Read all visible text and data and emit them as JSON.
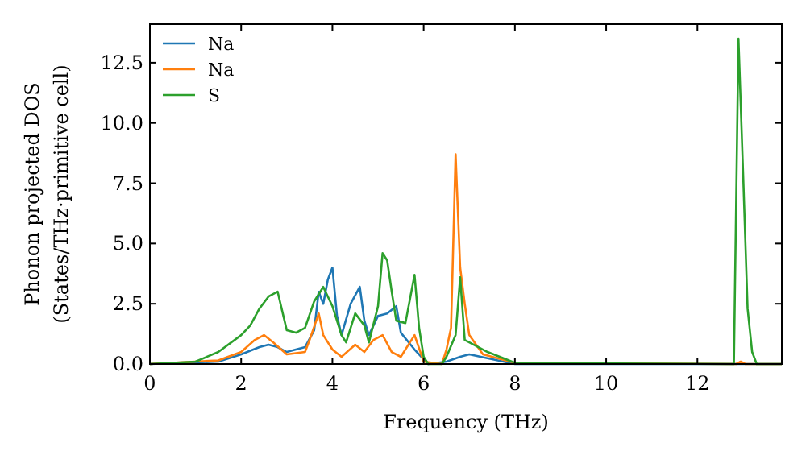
{
  "chart_data": {
    "type": "line",
    "xlabel": "Frequency (THz)",
    "ylabel": "Phonon projected DOS\n(States/THz·primitive cell)",
    "xlim": [
      0,
      13.85
    ],
    "ylim": [
      0,
      14.1
    ],
    "xticks": [
      0,
      2,
      4,
      6,
      8,
      10,
      12
    ],
    "yticks": [
      {
        "value": 0,
        "label": "0.0"
      },
      {
        "value": 2.5,
        "label": "2.5"
      },
      {
        "value": 5,
        "label": "5.0"
      },
      {
        "value": 7.5,
        "label": "7.5"
      },
      {
        "value": 10,
        "label": "10.0"
      },
      {
        "value": 12.5,
        "label": "12.5"
      }
    ],
    "grid": false,
    "legend": "top left",
    "series": [
      {
        "name": "Na",
        "color": "#1f77b4",
        "x": [
          0,
          1.5,
          2,
          2.4,
          2.6,
          2.8,
          3,
          3.4,
          3.6,
          3.7,
          3.8,
          3.9,
          4.0,
          4.1,
          4.2,
          4.4,
          4.6,
          4.7,
          4.8,
          5.0,
          5.2,
          5.4,
          5.5,
          5.8,
          6.0,
          6.1,
          6.5,
          6.8,
          7.0,
          7.5,
          8,
          13.85
        ],
        "values": [
          0,
          0.1,
          0.4,
          0.7,
          0.8,
          0.7,
          0.5,
          0.7,
          1.4,
          3.0,
          2.5,
          3.5,
          4.0,
          2.0,
          1.2,
          2.5,
          3.2,
          1.8,
          1.2,
          2.0,
          2.1,
          2.4,
          1.3,
          0.6,
          0.2,
          0,
          0.1,
          0.3,
          0.4,
          0.2,
          0,
          0
        ]
      },
      {
        "name": "Na",
        "color": "#ff7f0e",
        "x": [
          0,
          1.5,
          2,
          2.3,
          2.5,
          2.7,
          3,
          3.4,
          3.5,
          3.7,
          3.8,
          4.0,
          4.2,
          4.5,
          4.7,
          4.9,
          5.1,
          5.3,
          5.5,
          5.8,
          6.0,
          6.4,
          6.5,
          6.6,
          6.7,
          6.8,
          6.9,
          7.0,
          7.3,
          8,
          12.85,
          12.95,
          13.05,
          13.85
        ],
        "values": [
          0,
          0.15,
          0.5,
          1.0,
          1.2,
          0.9,
          0.4,
          0.5,
          1.0,
          2.1,
          1.2,
          0.6,
          0.3,
          0.8,
          0.5,
          1.0,
          1.2,
          0.5,
          0.3,
          1.2,
          0.1,
          0,
          0.6,
          1.5,
          8.7,
          4.0,
          2.5,
          1.2,
          0.4,
          0.05,
          0,
          0.1,
          0,
          0
        ]
      },
      {
        "name": "S",
        "color": "#2ca02c",
        "x": [
          0,
          1,
          1.5,
          2,
          2.2,
          2.4,
          2.6,
          2.8,
          3,
          3.2,
          3.4,
          3.6,
          3.8,
          3.9,
          4.0,
          4.2,
          4.3,
          4.5,
          4.7,
          4.8,
          5.0,
          5.1,
          5.2,
          5.3,
          5.4,
          5.6,
          5.8,
          5.9,
          6.0,
          6.1,
          6.4,
          6.5,
          6.7,
          6.8,
          6.9,
          7.0,
          7.4,
          8,
          12.8,
          12.9,
          13.0,
          13.1,
          13.2,
          13.3,
          13.85
        ],
        "values": [
          0,
          0.1,
          0.5,
          1.2,
          1.6,
          2.3,
          2.8,
          3.0,
          1.4,
          1.3,
          1.5,
          2.6,
          3.2,
          2.8,
          2.4,
          1.2,
          0.9,
          2.1,
          1.6,
          0.9,
          2.4,
          4.6,
          4.3,
          3.0,
          1.8,
          1.7,
          3.7,
          1.5,
          0.3,
          0,
          0,
          0.3,
          1.2,
          3.6,
          1.0,
          0.9,
          0.5,
          0.05,
          0,
          13.5,
          8,
          2.3,
          0.5,
          0,
          0
        ]
      }
    ]
  }
}
